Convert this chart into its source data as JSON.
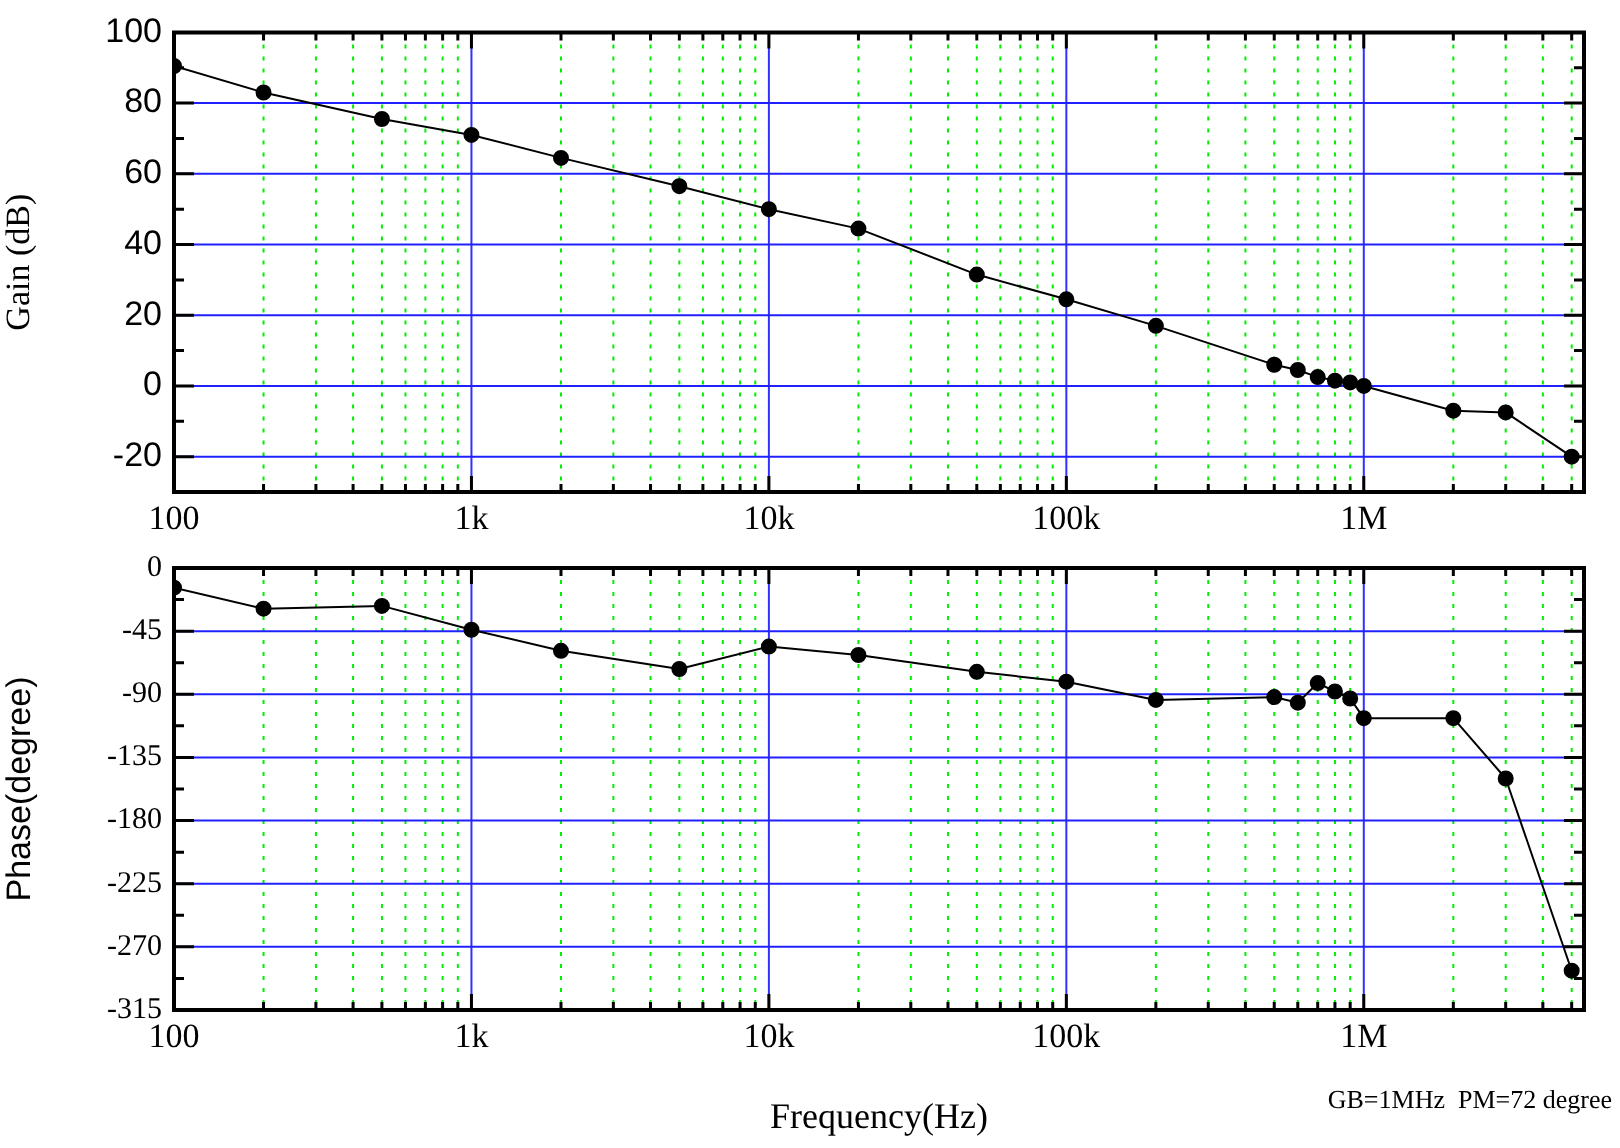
{
  "chart_data": [
    {
      "type": "line",
      "ylabel": "Gain (dB)",
      "log": "x",
      "grid": true,
      "legend": false,
      "marker": "circle",
      "line_style": "solid",
      "color": "#000000",
      "x": [
        100,
        200,
        500,
        1000,
        2000,
        5000,
        10000,
        20000,
        50000,
        100000,
        200000,
        500000,
        600000,
        700000,
        800000,
        900000,
        1000000,
        2000000,
        3000000,
        5000000
      ],
      "values": [
        90.5,
        83,
        75.5,
        71,
        64.5,
        56.5,
        50,
        44.5,
        31.5,
        24.5,
        17,
        6,
        4.5,
        2.5,
        1.5,
        1,
        0,
        -7,
        -7.5,
        -20
      ],
      "xlim": [
        100,
        5500000
      ],
      "xticks": [
        100,
        {
          "value": 200,
          "label": null
        },
        {
          "value": 300,
          "label": null
        },
        {
          "value": 400,
          "label": null
        },
        {
          "value": 500,
          "label": null
        },
        {
          "value": 600,
          "label": null
        },
        {
          "value": 700,
          "label": null
        },
        {
          "value": 800,
          "label": null
        },
        {
          "value": 900,
          "label": null
        },
        {
          "value": 1000,
          "label": "1k"
        },
        {
          "value": 2000,
          "label": null
        },
        {
          "value": 3000,
          "label": null
        },
        {
          "value": 4000,
          "label": null
        },
        {
          "value": 5000,
          "label": null
        },
        {
          "value": 6000,
          "label": null
        },
        {
          "value": 7000,
          "label": null
        },
        {
          "value": 8000,
          "label": null
        },
        {
          "value": 9000,
          "label": null
        },
        {
          "value": 10000,
          "label": "10k"
        },
        {
          "value": 20000,
          "label": null
        },
        {
          "value": 30000,
          "label": null
        },
        {
          "value": 40000,
          "label": null
        },
        {
          "value": 50000,
          "label": null
        },
        {
          "value": 60000,
          "label": null
        },
        {
          "value": 70000,
          "label": null
        },
        {
          "value": 80000,
          "label": null
        },
        {
          "value": 90000,
          "label": null
        },
        {
          "value": 100000,
          "label": "100k"
        },
        {
          "value": 200000,
          "label": null
        },
        {
          "value": 300000,
          "label": null
        },
        {
          "value": 400000,
          "label": null
        },
        {
          "value": 500000,
          "label": null
        },
        {
          "value": 600000,
          "label": null
        },
        {
          "value": 700000,
          "label": null
        },
        {
          "value": 800000,
          "label": null
        },
        {
          "value": 900000,
          "label": null
        },
        {
          "value": 1000000,
          "label": "1M"
        },
        {
          "value": 2000000,
          "label": null
        },
        {
          "value": 3000000,
          "label": null
        },
        {
          "value": 4000000,
          "label": null
        },
        {
          "value": 5000000,
          "label": null
        }
      ],
      "ylim": [
        -30,
        100
      ],
      "yticks": [
        -20,
        {
          "value": -10,
          "label": null
        },
        0,
        {
          "value": 10,
          "label": null
        },
        20,
        {
          "value": 30,
          "label": null
        },
        40,
        {
          "value": 50,
          "label": null
        },
        60,
        {
          "value": 70,
          "label": null
        },
        80,
        {
          "value": 90,
          "label": null
        },
        100
      ]
    },
    {
      "type": "line",
      "ylabel": "Phase(degree)",
      "xlabel": "Frequency(Hz)",
      "log": "x",
      "grid": true,
      "legend": false,
      "marker": "circle",
      "line_style": "solid",
      "color": "#000000",
      "annotations": [
        "GB=1MHz  PM=72 degree"
      ],
      "x": [
        100,
        200,
        500,
        1000,
        2000,
        5000,
        10000,
        20000,
        50000,
        100000,
        200000,
        500000,
        600000,
        700000,
        800000,
        900000,
        1000000,
        2000000,
        3000000,
        5000000
      ],
      "values": [
        -14,
        -29,
        -27,
        -44,
        -59,
        -72,
        -56,
        -62,
        -74,
        -81,
        -94,
        -92,
        -96,
        -82,
        -88,
        -93,
        -107,
        -107,
        -150,
        -287
      ],
      "xlim": [
        100,
        5500000
      ],
      "xticks": [
        100,
        {
          "value": 200,
          "label": null
        },
        {
          "value": 300,
          "label": null
        },
        {
          "value": 400,
          "label": null
        },
        {
          "value": 500,
          "label": null
        },
        {
          "value": 600,
          "label": null
        },
        {
          "value": 700,
          "label": null
        },
        {
          "value": 800,
          "label": null
        },
        {
          "value": 900,
          "label": null
        },
        {
          "value": 1000,
          "label": "1k"
        },
        {
          "value": 2000,
          "label": null
        },
        {
          "value": 3000,
          "label": null
        },
        {
          "value": 4000,
          "label": null
        },
        {
          "value": 5000,
          "label": null
        },
        {
          "value": 6000,
          "label": null
        },
        {
          "value": 7000,
          "label": null
        },
        {
          "value": 8000,
          "label": null
        },
        {
          "value": 9000,
          "label": null
        },
        {
          "value": 10000,
          "label": "10k"
        },
        {
          "value": 20000,
          "label": null
        },
        {
          "value": 30000,
          "label": null
        },
        {
          "value": 40000,
          "label": null
        },
        {
          "value": 50000,
          "label": null
        },
        {
          "value": 60000,
          "label": null
        },
        {
          "value": 70000,
          "label": null
        },
        {
          "value": 80000,
          "label": null
        },
        {
          "value": 90000,
          "label": null
        },
        {
          "value": 100000,
          "label": "100k"
        },
        {
          "value": 200000,
          "label": null
        },
        {
          "value": 300000,
          "label": null
        },
        {
          "value": 400000,
          "label": null
        },
        {
          "value": 500000,
          "label": null
        },
        {
          "value": 600000,
          "label": null
        },
        {
          "value": 700000,
          "label": null
        },
        {
          "value": 800000,
          "label": null
        },
        {
          "value": 900000,
          "label": null
        },
        {
          "value": 1000000,
          "label": "1M"
        },
        {
          "value": 2000000,
          "label": null
        },
        {
          "value": 3000000,
          "label": null
        },
        {
          "value": 4000000,
          "label": null
        },
        {
          "value": 5000000,
          "label": null
        }
      ],
      "ylim": [
        -315,
        0
      ],
      "yticks": [
        -315,
        {
          "value": -292.5,
          "label": null
        },
        -270,
        {
          "value": -247.5,
          "label": null
        },
        -225,
        {
          "value": -202.5,
          "label": null
        },
        -180,
        {
          "value": -157.5,
          "label": null
        },
        -135,
        {
          "value": -112.5,
          "label": null
        },
        -90,
        {
          "value": -67.5,
          "label": null
        },
        -45,
        {
          "value": -22.5,
          "label": null
        },
        0
      ]
    }
  ]
}
